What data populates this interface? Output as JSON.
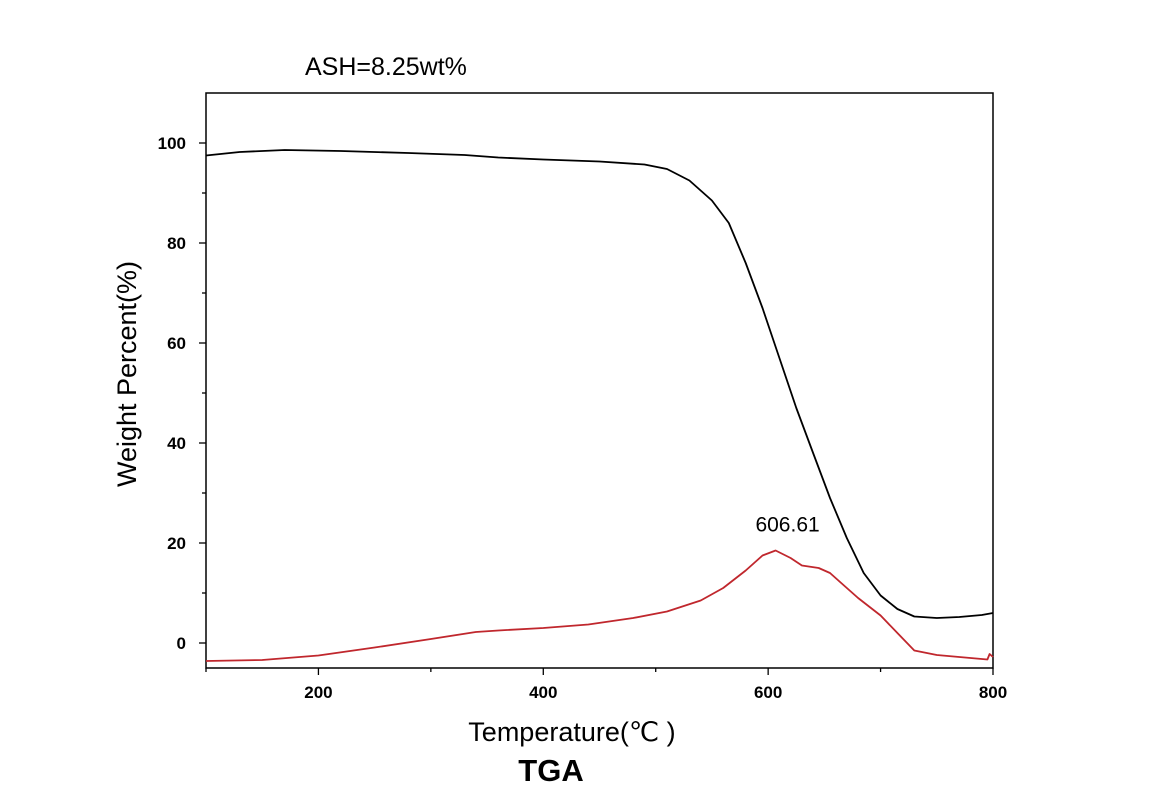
{
  "chart_data": {
    "type": "line",
    "top_annotation": "ASH=8.25wt%",
    "caption": "TGA",
    "xlabel": "Temperature(℃ )",
    "ylabel": "Weight Percent(%)",
    "xlim": [
      100,
      800
    ],
    "ylim": [
      -5,
      110
    ],
    "x_ticks": [
      200,
      400,
      600,
      800
    ],
    "y_ticks": [
      0,
      20,
      40,
      60,
      80,
      100
    ],
    "grid": false,
    "series": [
      {
        "color": "#000000",
        "points": [
          [
            100,
            97.5
          ],
          [
            130,
            98.2
          ],
          [
            170,
            98.6
          ],
          [
            220,
            98.4
          ],
          [
            280,
            98.0
          ],
          [
            330,
            97.6
          ],
          [
            360,
            97.1
          ],
          [
            400,
            96.7
          ],
          [
            450,
            96.3
          ],
          [
            490,
            95.7
          ],
          [
            510,
            94.8
          ],
          [
            530,
            92.5
          ],
          [
            550,
            88.5
          ],
          [
            565,
            84.0
          ],
          [
            580,
            76.0
          ],
          [
            595,
            67.0
          ],
          [
            610,
            57.0
          ],
          [
            625,
            47.0
          ],
          [
            640,
            38.0
          ],
          [
            655,
            29.0
          ],
          [
            670,
            21.0
          ],
          [
            685,
            14.0
          ],
          [
            700,
            9.5
          ],
          [
            715,
            6.8
          ],
          [
            730,
            5.3
          ],
          [
            750,
            5.0
          ],
          [
            770,
            5.2
          ],
          [
            790,
            5.6
          ],
          [
            800,
            6.0
          ]
        ]
      },
      {
        "color": "#c0272d",
        "points": [
          [
            100,
            -3.6
          ],
          [
            150,
            -3.4
          ],
          [
            200,
            -2.5
          ],
          [
            250,
            -0.9
          ],
          [
            300,
            0.8
          ],
          [
            340,
            2.2
          ],
          [
            360,
            2.5
          ],
          [
            400,
            3.0
          ],
          [
            440,
            3.7
          ],
          [
            480,
            5.0
          ],
          [
            510,
            6.3
          ],
          [
            540,
            8.5
          ],
          [
            560,
            11.0
          ],
          [
            580,
            14.5
          ],
          [
            595,
            17.5
          ],
          [
            606.61,
            18.5
          ],
          [
            620,
            17.0
          ],
          [
            630,
            15.5
          ],
          [
            645,
            15.0
          ],
          [
            655,
            14.0
          ],
          [
            665,
            12.0
          ],
          [
            680,
            9.0
          ],
          [
            700,
            5.5
          ],
          [
            715,
            2.0
          ],
          [
            730,
            -1.5
          ],
          [
            750,
            -2.4
          ],
          [
            780,
            -3.0
          ],
          [
            795,
            -3.3
          ],
          [
            797,
            -2.2
          ],
          [
            800,
            -2.8
          ]
        ]
      }
    ],
    "peak_label": {
      "text": "606.61",
      "x": 606.61,
      "y": 18.5
    }
  }
}
